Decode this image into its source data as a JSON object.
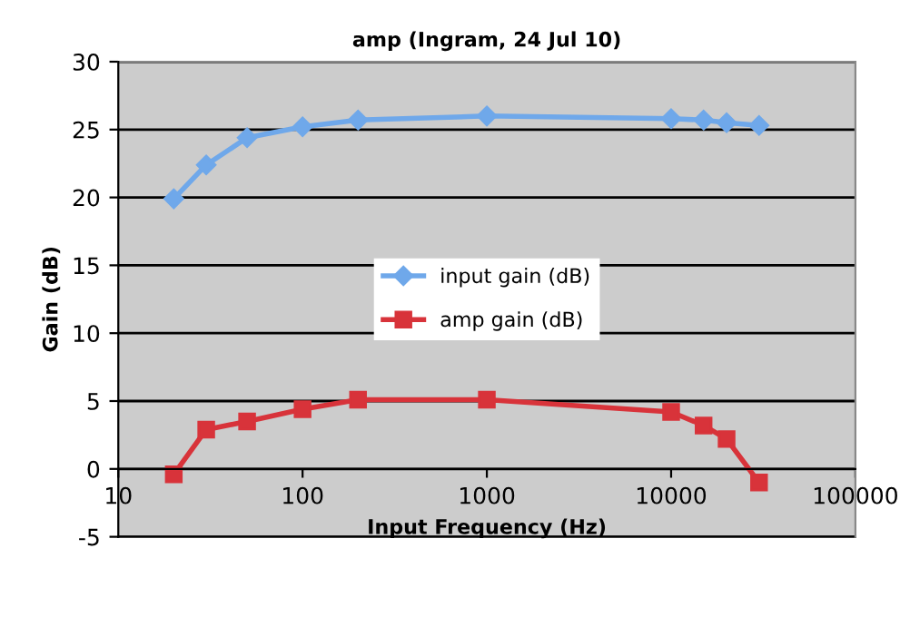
{
  "chart_data": {
    "type": "line",
    "title": "amp (Ingram, 24 Jul 10)",
    "xlabel": "Input Frequency (Hz)",
    "ylabel": "Gain (dB)",
    "log": "x",
    "x": [
      20,
      30,
      50,
      100,
      200,
      1000,
      10000,
      15000,
      20000,
      30000
    ],
    "series": [
      {
        "name": "input gain (dB)",
        "color": "#6fa8ea",
        "marker": "diamond",
        "values": [
          19.9,
          22.4,
          24.4,
          25.2,
          25.7,
          26.0,
          25.8,
          25.7,
          25.5,
          25.3
        ]
      },
      {
        "name": "amp gain (dB)",
        "color": "#d8333a",
        "marker": "square",
        "values": [
          -0.4,
          2.9,
          3.5,
          4.4,
          5.1,
          5.1,
          4.2,
          3.2,
          2.2,
          -1.0
        ]
      }
    ],
    "xlim": [
      10,
      100000
    ],
    "xticks": [
      10,
      100,
      1000,
      10000,
      100000
    ],
    "ylim": [
      -5,
      30
    ],
    "yticks": [
      -5,
      0,
      5,
      10,
      15,
      20,
      25,
      30
    ],
    "grid": "y",
    "legend": "center"
  }
}
